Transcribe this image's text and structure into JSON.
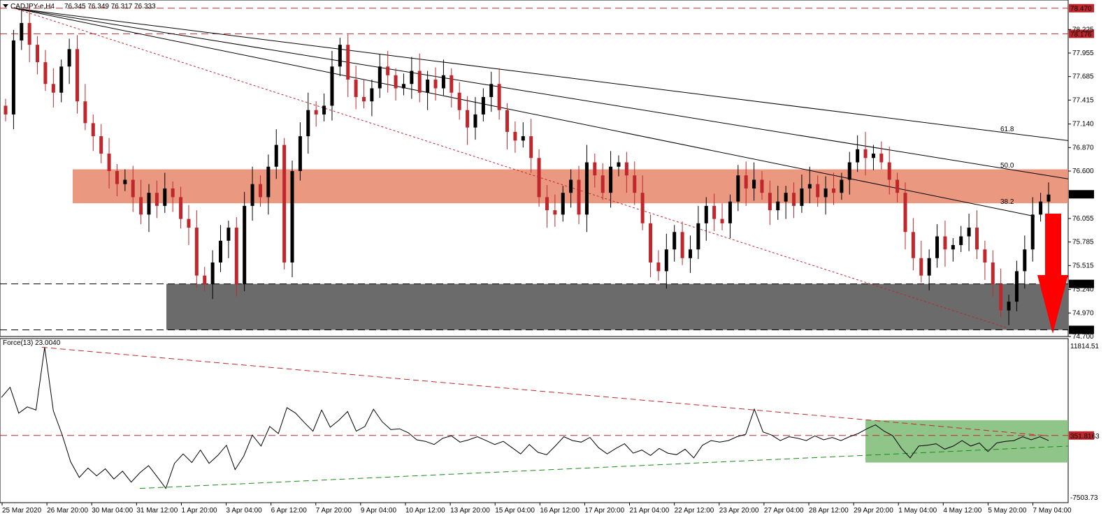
{
  "header": {
    "symbol": "CADJPY-e,H4",
    "ohlc": "76.345 76.349 76.317 76.333"
  },
  "indicator": {
    "label": "Force(13) 23.0040"
  },
  "colors": {
    "bull": "#000000",
    "bear": "#c0272d",
    "resistance_zone": "#e8866a",
    "support_zone": "#6b6b6b",
    "force_zone": "#7dbb74",
    "level_line": "#c0272d",
    "arrow": "#ff0000",
    "trend_green": "#1a8a1a"
  },
  "chart_data": [
    {
      "type": "candlestick",
      "title": "CADJPY-e,H4",
      "ylim": [
        74.7,
        78.5
      ],
      "x_tick_labels": [
        "25 Mar 2020",
        "26 Mar 20:00",
        "30 Mar 04:00",
        "31 Mar 12:00",
        "1 Apr 20:00",
        "3 Apr 04:00",
        "6 Apr 12:00",
        "7 Apr 20:00",
        "9 Apr 04:00",
        "10 Apr 12:00",
        "13 Apr 20:00",
        "15 Apr 04:00",
        "16 Apr 12:00",
        "17 Apr 20:00",
        "21 Apr 04:00",
        "22 Apr 12:00",
        "23 Apr 20:00",
        "27 Apr 04:00",
        "28 Apr 12:00",
        "29 Apr 20:00",
        "1 May 04:00",
        "4 May 12:00",
        "5 May 20:00",
        "7 May 04:00"
      ],
      "y_tick_labels": [
        "78.225",
        "77.955",
        "77.685",
        "77.415",
        "77.140",
        "76.870",
        "76.600",
        "76.055",
        "75.785",
        "75.515",
        "75.240",
        "74.970",
        "74.700"
      ],
      "y_tick_values": [
        78.225,
        77.955,
        77.685,
        77.415,
        77.14,
        76.87,
        76.6,
        76.055,
        75.785,
        75.515,
        75.24,
        74.97,
        74.7
      ],
      "levels": [
        {
          "label": "78.470",
          "value": 78.47
        },
        {
          "label": "78.176",
          "value": 78.176
        },
        {
          "label": "75.304",
          "value": 75.304
        },
        {
          "label": "74.776",
          "value": 74.776
        }
      ],
      "current_price": {
        "label": "76.333",
        "value": 76.333
      },
      "zones": [
        {
          "name": "resistance",
          "from": 76.23,
          "to": 76.62
        },
        {
          "name": "support",
          "from": 74.776,
          "to": 75.304
        }
      ],
      "fib_labels": [
        {
          "label": "61.8",
          "value": 77.14
        },
        {
          "label": "50.0",
          "value": 76.66
        },
        {
          "label": "38.2",
          "value": 76.19
        }
      ],
      "candles_close": [
        77.25,
        78.1,
        78.3,
        78.05,
        77.85,
        77.6,
        77.5,
        77.8,
        78.0,
        77.4,
        77.15,
        77.0,
        76.8,
        76.6,
        76.45,
        76.5,
        76.3,
        76.1,
        76.35,
        76.2,
        76.4,
        76.3,
        76.05,
        75.95,
        75.4,
        75.3,
        75.55,
        75.8,
        75.95,
        75.3,
        76.2,
        76.45,
        76.3,
        76.65,
        76.9,
        75.55,
        76.6,
        77.0,
        77.3,
        77.25,
        77.35,
        77.8,
        78.05,
        77.65,
        77.45,
        77.4,
        77.55,
        77.8,
        77.7,
        77.55,
        77.6,
        77.75,
        77.5,
        77.65,
        77.55,
        77.7,
        77.5,
        77.3,
        77.1,
        77.25,
        77.45,
        77.6,
        77.3,
        77.05,
        76.95,
        77.0,
        76.75,
        76.3,
        76.15,
        76.1,
        76.35,
        76.5,
        76.1,
        76.7,
        76.55,
        76.35,
        76.65,
        76.7,
        76.55,
        76.35,
        76.0,
        75.55,
        75.45,
        75.7,
        75.9,
        75.6,
        75.7,
        76.0,
        76.2,
        76.05,
        76.0,
        76.25,
        76.55,
        76.4,
        76.5,
        76.35,
        76.15,
        76.25,
        76.35,
        76.2,
        76.4,
        76.45,
        76.3,
        76.4,
        76.35,
        76.5,
        76.7,
        76.85,
        76.75,
        76.8,
        76.7,
        76.5,
        76.35,
        75.9,
        75.6,
        75.4,
        75.6,
        75.85,
        75.7,
        75.75,
        75.85,
        75.95,
        75.7,
        75.55,
        75.3,
        75.0,
        75.1,
        75.45,
        75.7,
        76.1,
        76.25,
        76.33
      ]
    },
    {
      "type": "line",
      "title": "Force(13) 23.0040",
      "ylim": [
        -7503.73,
        11814.51
      ],
      "y_tick_labels": [
        "11814.51",
        "-7503.73"
      ],
      "reference_level": {
        "label": "351.8163",
        "value": 351.8163
      },
      "values": [
        5200,
        6500,
        3200,
        4000,
        3600,
        11600,
        3500,
        500,
        -3000,
        -5000,
        -3800,
        -4800,
        -3900,
        -5200,
        -4200,
        -5600,
        -4400,
        -3500,
        -4900,
        -6400,
        -3200,
        -2000,
        -3100,
        -1500,
        -3200,
        -2200,
        -900,
        -4000,
        -2300,
        400,
        -1000,
        1500,
        600,
        3900,
        3200,
        2000,
        900,
        3600,
        1400,
        2300,
        3400,
        900,
        1500,
        3700,
        2100,
        1100,
        1200,
        700,
        -200,
        -400,
        -800,
        0,
        300,
        -500,
        -200,
        200,
        -300,
        -800,
        -400,
        -1200,
        -2000,
        -800,
        -1800,
        -2100,
        -1000,
        200,
        -300,
        -500,
        100,
        -1200,
        -2000,
        -1300,
        -700,
        -1900,
        -1500,
        -2200,
        -1300,
        -1900,
        -2100,
        -1400,
        -2500,
        -900,
        -300,
        -500,
        -300,
        200,
        500,
        3700,
        800,
        400,
        -300,
        200,
        0,
        -300,
        300,
        -200,
        100,
        -300,
        200,
        600,
        1200,
        1700,
        900,
        300,
        -1300,
        -2500,
        -1000,
        -900,
        -700,
        -1400,
        -1000,
        -300,
        -1000,
        -600,
        -1700,
        -600,
        -400,
        -300,
        200,
        -200,
        200,
        -300
      ]
    }
  ]
}
